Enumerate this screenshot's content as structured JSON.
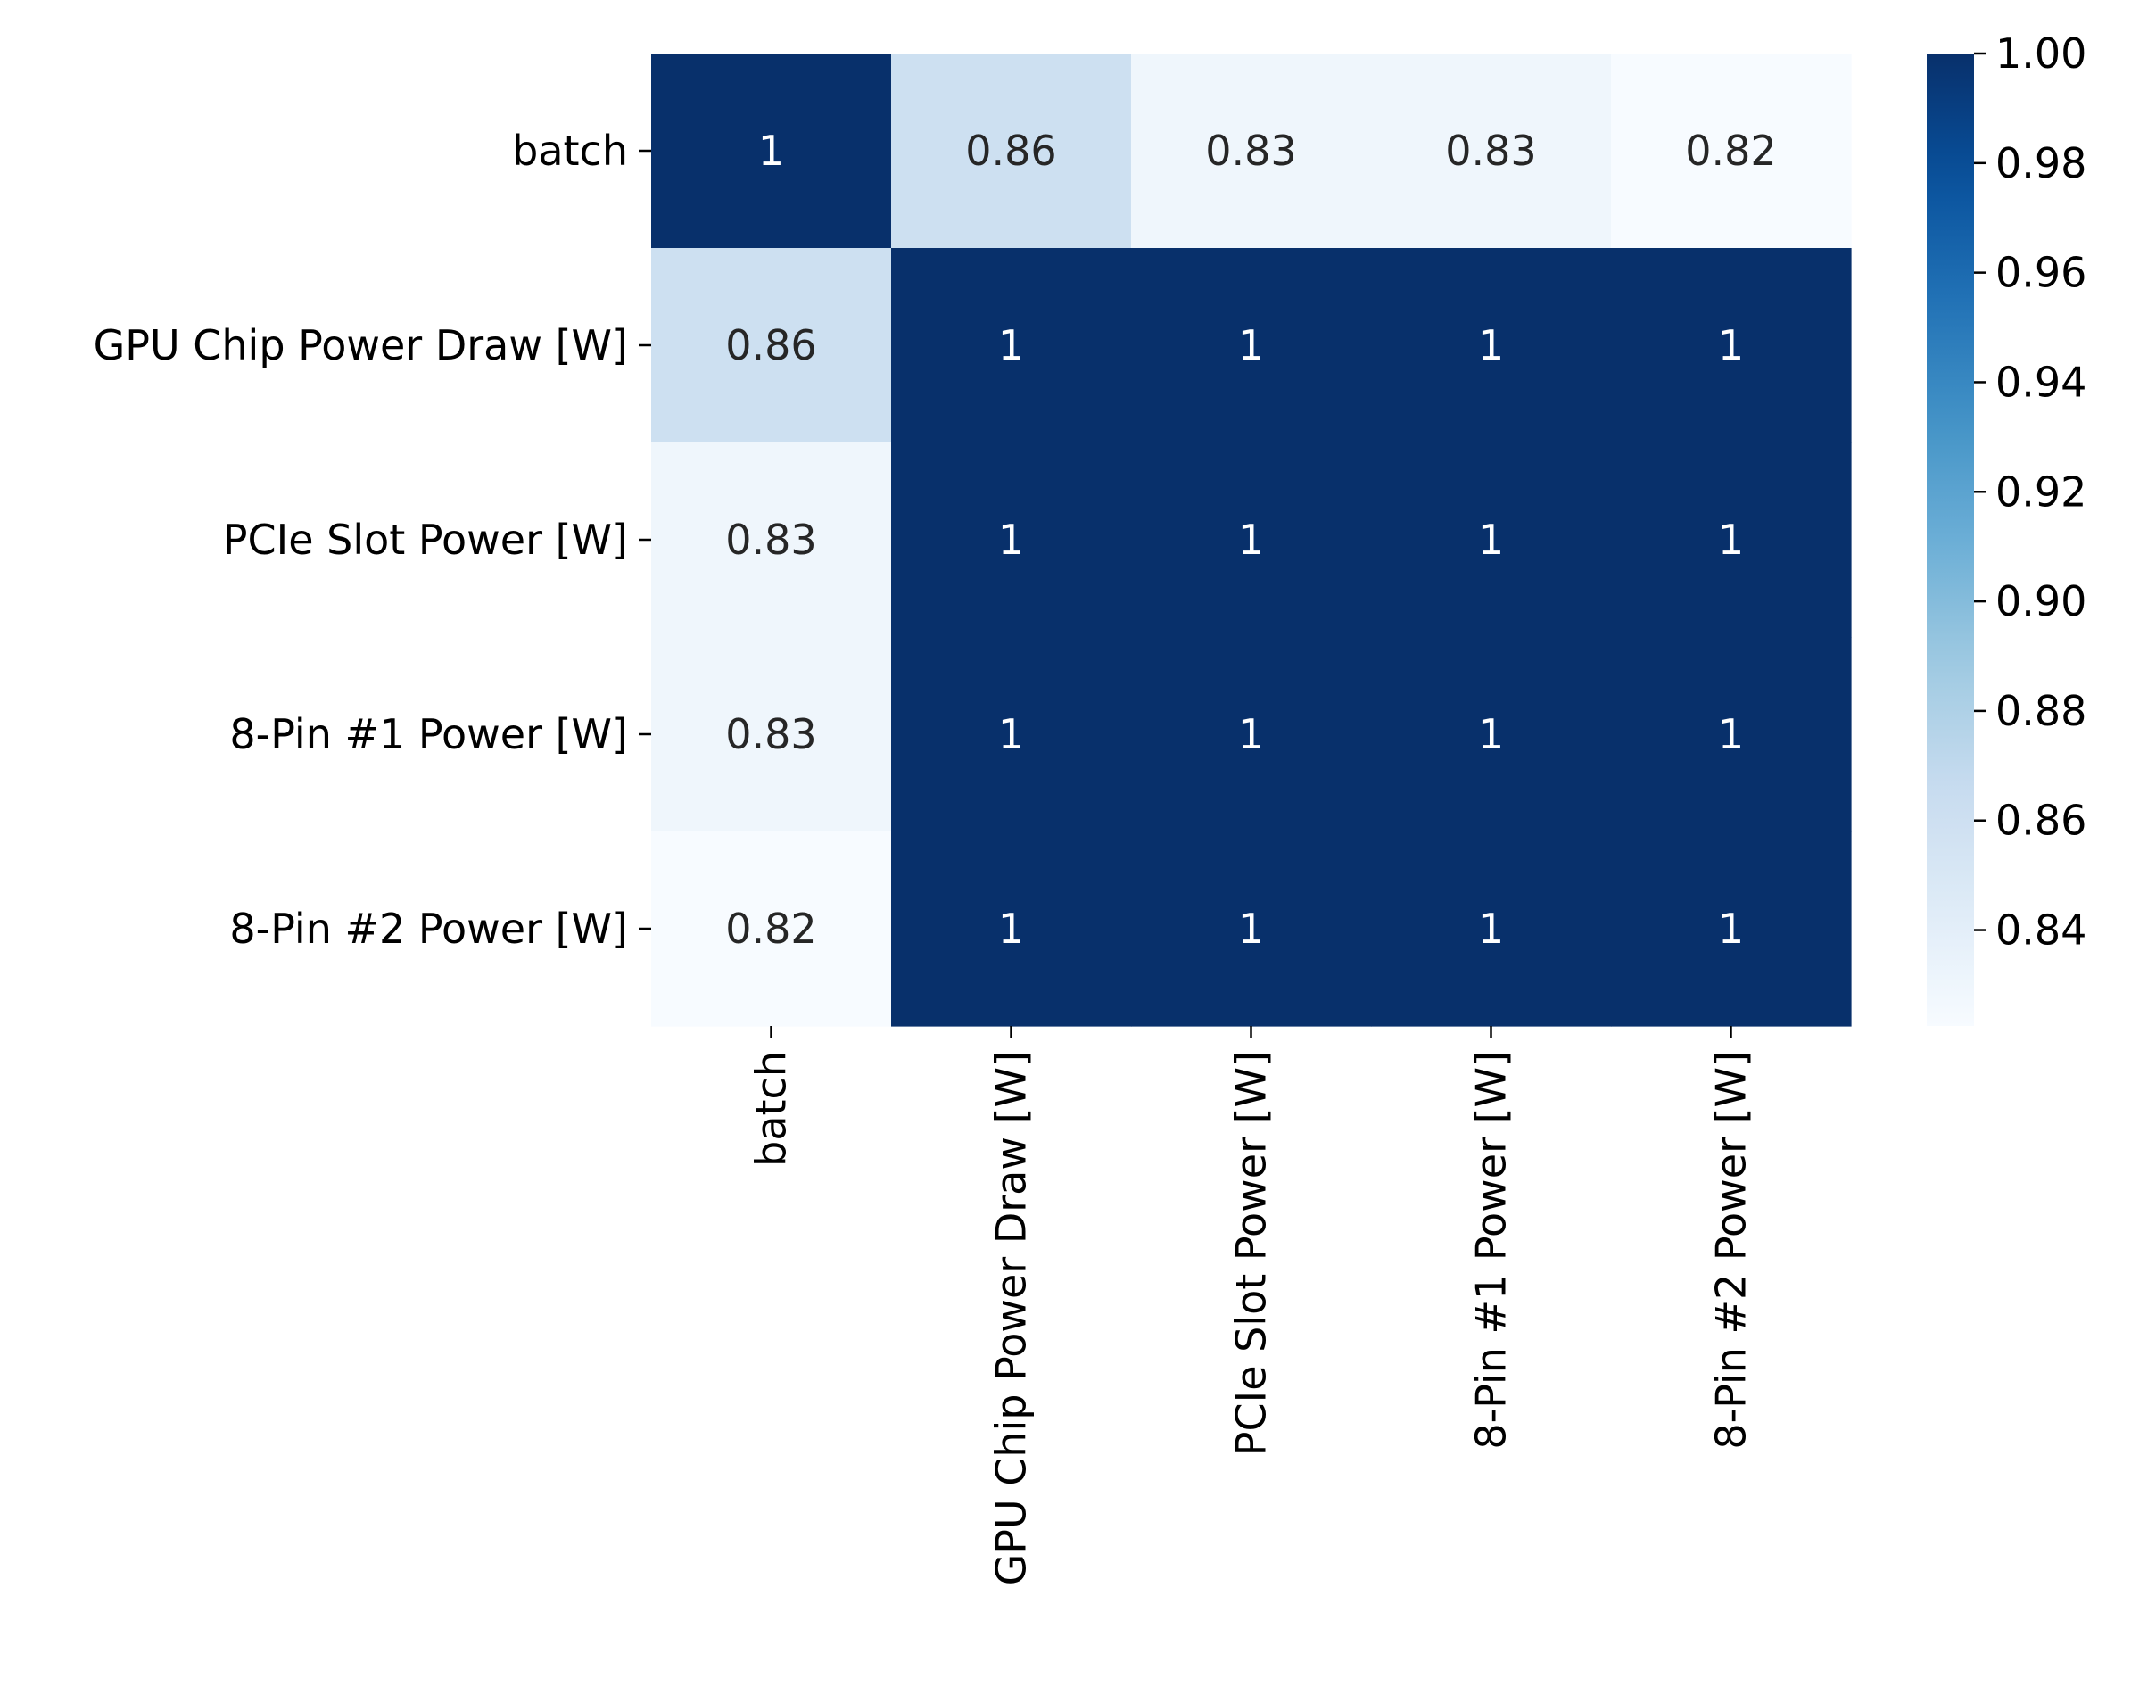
{
  "chart_data": {
    "type": "heatmap",
    "rows": [
      "batch",
      "GPU Chip Power Draw [W]",
      "PCIe Slot Power [W]",
      "8-Pin #1 Power [W]",
      "8-Pin #2 Power [W]"
    ],
    "columns": [
      "batch",
      "GPU Chip Power Draw [W]",
      "PCIe Slot Power [W]",
      "8-Pin #1 Power [W]",
      "8-Pin #2 Power [W]"
    ],
    "values": [
      [
        1,
        0.86,
        0.83,
        0.83,
        0.82
      ],
      [
        0.86,
        1,
        1,
        1,
        1
      ],
      [
        0.83,
        1,
        1,
        1,
        1
      ],
      [
        0.83,
        1,
        1,
        1,
        1
      ],
      [
        0.82,
        1,
        1,
        1,
        1
      ]
    ],
    "annotations": [
      [
        "1",
        "0.86",
        "0.83",
        "0.83",
        "0.82"
      ],
      [
        "0.86",
        "1",
        "1",
        "1",
        "1"
      ],
      [
        "0.83",
        "1",
        "1",
        "1",
        "1"
      ],
      [
        "0.83",
        "1",
        "1",
        "1",
        "1"
      ],
      [
        "0.82",
        "1",
        "1",
        "1",
        "1"
      ]
    ],
    "colorbar": {
      "colormap": "Blues",
      "vmin": 0.8225,
      "vmax": 1.0,
      "ticks": [
        "0.84",
        "0.86",
        "0.88",
        "0.90",
        "0.92",
        "0.94",
        "0.96",
        "0.98",
        "1.00"
      ],
      "tick_values": [
        0.84,
        0.86,
        0.88,
        0.9,
        0.92,
        0.94,
        0.96,
        0.98,
        1.0
      ]
    },
    "title": "",
    "xlabel": "",
    "ylabel": "",
    "grid": false
  }
}
